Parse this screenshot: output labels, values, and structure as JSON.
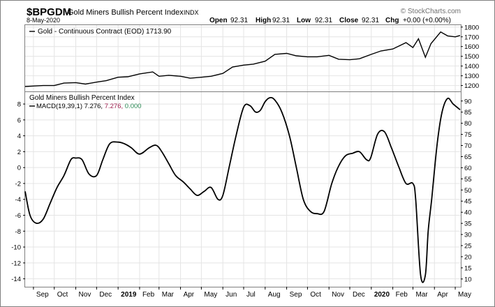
{
  "header": {
    "symbol": "$BPGDM",
    "name": "Gold Miners Bullish Percent Index",
    "exchange": "INDX",
    "date": "8-May-2020",
    "watermark": "© StockCharts.com",
    "ohlc": [
      {
        "label": "Open",
        "value": "92.31"
      },
      {
        "label": "High",
        "value": "92.31"
      },
      {
        "label": "Low",
        "value": "92.31"
      },
      {
        "label": "Close",
        "value": "92.31"
      },
      {
        "label": "Chg",
        "value": "+0.00 (+0.00%)"
      }
    ]
  },
  "colors": {
    "background": "#ffffff",
    "grid": "#e4e4e4",
    "line": "#000000",
    "macd_signal": "#9b1b4b",
    "macd_hist": "#2e8b57",
    "frame": "#7f7f7f"
  },
  "chart_data": [
    {
      "type": "line",
      "legend": "Gold - Continuous Contract (EOD) 1713.90",
      "ylim": [
        1140,
        1820
      ],
      "y_ticks": [
        "1200",
        "1300",
        "1400",
        "1500",
        "1600",
        "1700",
        "1800"
      ],
      "x": [
        "2018-08-20",
        "2018-09-01",
        "2018-09-15",
        "2018-10-01",
        "2018-10-15",
        "2018-11-01",
        "2018-11-15",
        "2018-12-01",
        "2018-12-15",
        "2019-01-01",
        "2019-01-15",
        "2019-02-01",
        "2019-02-20",
        "2019-03-01",
        "2019-03-15",
        "2019-04-01",
        "2019-04-15",
        "2019-05-01",
        "2019-05-15",
        "2019-06-01",
        "2019-06-15",
        "2019-07-01",
        "2019-07-15",
        "2019-08-01",
        "2019-08-15",
        "2019-09-01",
        "2019-09-15",
        "2019-10-01",
        "2019-10-15",
        "2019-11-01",
        "2019-11-15",
        "2019-12-01",
        "2019-12-15",
        "2020-01-01",
        "2020-01-15",
        "2020-02-01",
        "2020-02-20",
        "2020-03-01",
        "2020-03-09",
        "2020-03-19",
        "2020-03-27",
        "2020-04-10",
        "2020-04-20",
        "2020-05-01",
        "2020-05-08"
      ],
      "values": [
        1190,
        1195,
        1200,
        1200,
        1225,
        1230,
        1215,
        1235,
        1250,
        1285,
        1290,
        1320,
        1340,
        1295,
        1305,
        1295,
        1275,
        1285,
        1295,
        1325,
        1390,
        1410,
        1420,
        1450,
        1520,
        1530,
        1505,
        1495,
        1495,
        1510,
        1470,
        1465,
        1475,
        1520,
        1555,
        1575,
        1640,
        1590,
        1680,
        1490,
        1630,
        1750,
        1710,
        1700,
        1713.9
      ]
    },
    {
      "type": "line",
      "legend_title": "Gold Miners Bullish Percent Index",
      "legend_macd_label": "MACD(19,39,1)",
      "legend_macd_value": "7.276,",
      "legend_signal_value": "7.276,",
      "legend_hist_value": "0.000",
      "ylim": [
        -15,
        9.5
      ],
      "y_ticks": [
        "-14",
        "-12",
        "-10",
        "-8",
        "-6",
        "-4",
        "-2",
        "0",
        "2",
        "4",
        "6",
        "8"
      ],
      "right_ylim": [
        6.5,
        94
      ],
      "right_ticks": [
        "10",
        "15",
        "20",
        "25",
        "30",
        "35",
        "40",
        "45",
        "50",
        "55",
        "60",
        "65",
        "70",
        "75",
        "80",
        "85",
        "90"
      ],
      "x_ticks": [
        {
          "date": "2018-09-01",
          "label": "Sep",
          "bold": false
        },
        {
          "date": "2018-10-01",
          "label": "Oct",
          "bold": false
        },
        {
          "date": "2018-11-01",
          "label": "Nov",
          "bold": false
        },
        {
          "date": "2018-12-01",
          "label": "Dec",
          "bold": false
        },
        {
          "date": "2019-01-01",
          "label": "2019",
          "bold": true
        },
        {
          "date": "2019-02-01",
          "label": "Feb",
          "bold": false
        },
        {
          "date": "2019-03-01",
          "label": "Mar",
          "bold": false
        },
        {
          "date": "2019-04-01",
          "label": "Apr",
          "bold": false
        },
        {
          "date": "2019-05-01",
          "label": "May",
          "bold": false
        },
        {
          "date": "2019-06-01",
          "label": "Jun",
          "bold": false
        },
        {
          "date": "2019-07-01",
          "label": "Jul",
          "bold": false
        },
        {
          "date": "2019-08-01",
          "label": "Aug",
          "bold": false
        },
        {
          "date": "2019-09-01",
          "label": "Sep",
          "bold": false
        },
        {
          "date": "2019-10-01",
          "label": "Oct",
          "bold": false
        },
        {
          "date": "2019-11-01",
          "label": "Nov",
          "bold": false
        },
        {
          "date": "2019-12-01",
          "label": "Dec",
          "bold": false
        },
        {
          "date": "2020-01-01",
          "label": "2020",
          "bold": true
        },
        {
          "date": "2020-02-01",
          "label": "Feb",
          "bold": false
        },
        {
          "date": "2020-03-01",
          "label": "Mar",
          "bold": false
        },
        {
          "date": "2020-04-01",
          "label": "Apr",
          "bold": false
        },
        {
          "date": "2020-05-01",
          "label": "May",
          "bold": false
        }
      ],
      "x": [
        "2018-08-20",
        "2018-08-27",
        "2018-09-05",
        "2018-09-15",
        "2018-09-25",
        "2018-10-05",
        "2018-10-15",
        "2018-10-25",
        "2018-11-01",
        "2018-11-10",
        "2018-11-20",
        "2018-12-01",
        "2018-12-10",
        "2018-12-20",
        "2019-01-01",
        "2019-01-10",
        "2019-01-20",
        "2019-02-01",
        "2019-02-15",
        "2019-02-25",
        "2019-03-05",
        "2019-03-15",
        "2019-03-25",
        "2019-04-05",
        "2019-04-15",
        "2019-04-25",
        "2019-05-05",
        "2019-05-15",
        "2019-05-25",
        "2019-06-01",
        "2019-06-10",
        "2019-06-20",
        "2019-07-01",
        "2019-07-10",
        "2019-07-18",
        "2019-07-25",
        "2019-08-01",
        "2019-08-08",
        "2019-08-15",
        "2019-08-25",
        "2019-09-05",
        "2019-09-15",
        "2019-09-25",
        "2019-10-05",
        "2019-10-15",
        "2019-10-25",
        "2019-11-05",
        "2019-11-15",
        "2019-11-25",
        "2019-12-05",
        "2019-12-15",
        "2019-12-25",
        "2019-12-31",
        "2020-01-10",
        "2020-01-20",
        "2020-01-30",
        "2020-02-10",
        "2020-02-20",
        "2020-03-01",
        "2020-03-05",
        "2020-03-12",
        "2020-03-19",
        "2020-03-23",
        "2020-03-28",
        "2020-04-05",
        "2020-04-12",
        "2020-04-20",
        "2020-04-28",
        "2020-05-08"
      ],
      "values": [
        -3,
        -6,
        -7,
        -6.5,
        -4.5,
        -2.5,
        -1,
        1,
        1.2,
        1,
        -0.8,
        -1,
        1,
        3,
        3.2,
        3,
        2.5,
        1.7,
        2.5,
        2.8,
        2,
        0.5,
        -1,
        -1.8,
        -2.7,
        -3.5,
        -3,
        -2.5,
        -4,
        -3.5,
        0,
        4,
        7.6,
        7.8,
        7,
        7.2,
        8.3,
        8.8,
        8.5,
        7,
        4,
        0,
        -4,
        -5.5,
        -5.8,
        -5.5,
        -2,
        0.2,
        1.5,
        1.8,
        2,
        1,
        1.2,
        4.2,
        4.5,
        2.5,
        0,
        -2,
        -2,
        -4,
        -13.5,
        -13.5,
        -8,
        -4,
        3,
        7,
        8.7,
        8,
        7.276
      ]
    }
  ]
}
